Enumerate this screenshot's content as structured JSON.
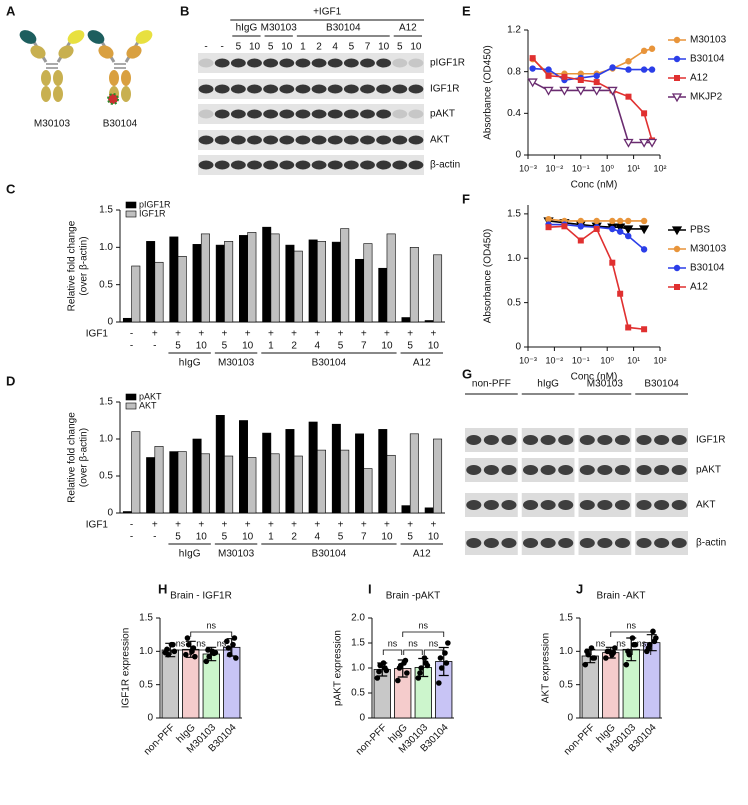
{
  "panel_letters": [
    "A",
    "B",
    "C",
    "D",
    "E",
    "F",
    "G",
    "H",
    "I",
    "J"
  ],
  "antibodies": [
    "M30103",
    "B30104"
  ],
  "blot_b": {
    "treatment": "+IGF1",
    "groups": [
      "hIgG",
      "M30103",
      "B30104",
      "A12"
    ],
    "lanes": [
      "-",
      "-",
      "5",
      "10",
      "5",
      "10",
      "1",
      "2",
      "4",
      "5",
      "7",
      "10",
      "5",
      "10"
    ],
    "rows": [
      "pIGF1R",
      "IGF1R",
      "pAKT",
      "AKT",
      "β-actin"
    ]
  },
  "blot_g": {
    "groups": [
      "non-PFF",
      "hIgG",
      "M30103",
      "B30104"
    ],
    "rows": [
      "IGF1R",
      "pAKT",
      "AKT",
      "β-actin"
    ]
  },
  "chart_data": [
    {
      "type": "grouped_bar",
      "y_label": [
        "Relative fold change",
        "(over β-actin)"
      ],
      "row_label": "IGF1",
      "igf1": [
        "-",
        "+",
        "+",
        "+",
        "+",
        "+",
        "+",
        "+",
        "+",
        "+",
        "+",
        "+",
        "+",
        "+"
      ],
      "categories": [
        "-",
        "-",
        "5",
        "10",
        "5",
        "10",
        "1",
        "2",
        "4",
        "5",
        "7",
        "10",
        "5",
        "10"
      ],
      "groups": [
        "hIgG",
        "M30103",
        "B30104",
        "A12"
      ],
      "ylim": [
        0,
        1.5
      ],
      "yticks": [
        0,
        0.5,
        {
          "value": 1,
          "label": "1.0"
        },
        1.5
      ],
      "series": [
        {
          "name": "pIGF1R",
          "color": "#000000",
          "values": [
            0.05,
            1.08,
            1.14,
            1.04,
            1.03,
            1.16,
            1.27,
            1.03,
            1.1,
            1.07,
            0.84,
            0.72,
            0.06,
            0.02
          ]
        },
        {
          "name": "IGF1R",
          "color": "#c0c0c0",
          "values": [
            0.75,
            0.8,
            0.88,
            1.18,
            1.08,
            1.2,
            1.18,
            0.95,
            1.08,
            1.25,
            1.05,
            1.18,
            1.0,
            0.9
          ]
        }
      ]
    },
    {
      "type": "grouped_bar",
      "y_label": [
        "Relative fold change",
        "(over β-actin)"
      ],
      "row_label": "IGF1",
      "igf1": [
        "-",
        "+",
        "+",
        "+",
        "+",
        "+",
        "+",
        "+",
        "+",
        "+",
        "+",
        "+",
        "+",
        "+"
      ],
      "categories": [
        "-",
        "-",
        "5",
        "10",
        "5",
        "10",
        "1",
        "2",
        "4",
        "5",
        "7",
        "10",
        "5",
        "10"
      ],
      "groups": [
        "hIgG",
        "M30103",
        "B30104",
        "A12"
      ],
      "ylim": [
        0,
        1.5
      ],
      "yticks": [
        0,
        0.5,
        {
          "value": 1,
          "label": "1.0"
        },
        1.5
      ],
      "series": [
        {
          "name": "pAKT",
          "color": "#000000",
          "values": [
            0.02,
            0.75,
            0.83,
            1.0,
            1.32,
            1.25,
            1.08,
            1.13,
            1.23,
            1.2,
            1.07,
            1.13,
            0.1,
            0.07
          ]
        },
        {
          "name": "AKT",
          "color": "#c0c0c0",
          "values": [
            1.1,
            0.9,
            0.83,
            0.8,
            0.77,
            0.75,
            0.8,
            0.77,
            0.85,
            0.85,
            0.6,
            0.78,
            1.07,
            1.0
          ]
        }
      ]
    },
    {
      "type": "line",
      "x_scale": "log",
      "x_label": "Conc (nM)",
      "y_label": "Absorbance (OD450)",
      "x": [
        0.0015,
        0.006,
        0.024,
        0.1,
        0.4,
        1.6,
        6.4,
        25,
        50
      ],
      "xlim": [
        0.001,
        100
      ],
      "xticks": [
        {
          "value": 0.001,
          "label": "10⁻³"
        },
        {
          "value": 0.01,
          "label": "10⁻²"
        },
        {
          "value": 0.1,
          "label": "10⁻¹"
        },
        {
          "value": 1,
          "label": "10⁰"
        },
        {
          "value": 10,
          "label": "10¹"
        },
        {
          "value": 100,
          "label": "10²"
        }
      ],
      "ylim": [
        0,
        1.2
      ],
      "yticks": [
        0,
        0.4,
        0.8,
        1.2
      ],
      "series": [
        {
          "name": "M30103",
          "color": "#e8943a",
          "marker": "circle",
          "values": [
            0.92,
            0.78,
            0.78,
            0.78,
            0.78,
            0.83,
            0.9,
            1.0,
            1.02
          ]
        },
        {
          "name": "B30104",
          "color": "#2b3ee8",
          "marker": "circle",
          "values": [
            0.83,
            0.82,
            0.72,
            0.74,
            0.76,
            0.84,
            0.82,
            0.82,
            0.82
          ]
        },
        {
          "name": "A12",
          "color": "#e03030",
          "marker": "square",
          "values": [
            0.93,
            0.76,
            0.75,
            0.72,
            0.7,
            0.62,
            0.56,
            0.4,
            0.14
          ]
        },
        {
          "name": "MKJP2",
          "color": "#6a2c70",
          "marker": "triangle-down-open",
          "values": [
            0.7,
            0.62,
            0.62,
            0.62,
            0.62,
            0.62,
            0.12,
            0.12,
            0.12
          ]
        }
      ]
    },
    {
      "type": "line",
      "x_scale": "log",
      "x_label": "Conc (nM)",
      "y_label": "Absorbance (OD450)",
      "x": [
        0.006,
        0.024,
        0.1,
        0.4,
        1.56,
        3.1,
        6.25,
        25
      ],
      "xlim": [
        0.001,
        100
      ],
      "xticks": [
        {
          "value": 0.001,
          "label": "10⁻³"
        },
        {
          "value": 0.01,
          "label": "10⁻²"
        },
        {
          "value": 0.1,
          "label": "10⁻¹"
        },
        {
          "value": 1,
          "label": "10⁰"
        },
        {
          "value": 10,
          "label": "10¹"
        },
        {
          "value": 100,
          "label": "10²"
        }
      ],
      "ylim": [
        0,
        1.6
      ],
      "yticks": [
        0,
        0.5,
        {
          "value": 1,
          "label": "1.0"
        },
        1.5
      ],
      "series": [
        {
          "name": "PBS",
          "color": "#000000",
          "marker": "triangle-down",
          "values": [
            1.42,
            1.4,
            1.38,
            1.36,
            1.35,
            1.35,
            1.33,
            1.33
          ]
        },
        {
          "name": "M30103",
          "color": "#e8943a",
          "marker": "circle",
          "values": [
            1.44,
            1.42,
            1.42,
            1.42,
            1.42,
            1.42,
            1.42,
            1.42
          ]
        },
        {
          "name": "B30104",
          "color": "#2b3ee8",
          "marker": "circle",
          "values": [
            1.38,
            1.38,
            1.36,
            1.35,
            1.33,
            1.3,
            1.25,
            1.1
          ]
        },
        {
          "name": "A12",
          "color": "#e03030",
          "marker": "square",
          "values": [
            1.35,
            1.36,
            1.2,
            1.33,
            0.95,
            0.6,
            0.22,
            0.2
          ]
        }
      ]
    },
    {
      "type": "bar_scatter",
      "title": "Brain - IGF1R",
      "y_label": "IGF1R expression",
      "categories": [
        "non-PFF",
        "hIgG",
        "M30103",
        "B30104"
      ],
      "colors": [
        "#c8c8c8",
        "#f5cccc",
        "#ccf5cc",
        "#c8c4f5"
      ],
      "values": [
        1.02,
        1.03,
        0.96,
        1.06
      ],
      "errors": [
        0.1,
        0.12,
        0.1,
        0.13
      ],
      "points": [
        [
          0.98,
          0.95,
          1.1,
          1.0,
          1.03,
          1.1
        ],
        [
          0.95,
          1.1,
          1.0,
          0.92,
          1.2,
          1.05
        ],
        [
          0.85,
          0.92,
          1.0,
          0.98,
          1.02,
          0.97
        ],
        [
          1.15,
          0.95,
          1.1,
          0.9,
          1.05,
          1.2
        ]
      ],
      "ylim": [
        0,
        1.5
      ],
      "yticks": [
        0,
        0.5,
        {
          "value": 1,
          "label": "1.0"
        },
        1.5
      ],
      "annotations": [
        "ns",
        "ns",
        "ns",
        "ns"
      ]
    },
    {
      "type": "bar_scatter",
      "title": "Brain -pAKT",
      "y_label": "pAKT expression",
      "categories": [
        "non-PFF",
        "hIgG",
        "M30103",
        "B30104"
      ],
      "colors": [
        "#c8c8c8",
        "#f5cccc",
        "#ccf5cc",
        "#c8c4f5"
      ],
      "values": [
        0.97,
        0.99,
        1.01,
        1.13
      ],
      "errors": [
        0.13,
        0.17,
        0.18,
        0.28
      ],
      "points": [
        [
          0.8,
          1.05,
          1.1,
          0.95,
          0.93,
          1.0
        ],
        [
          0.75,
          1.05,
          1.1,
          0.9,
          1.0,
          1.15
        ],
        [
          0.8,
          1.0,
          1.2,
          1.05,
          0.9,
          1.1
        ],
        [
          0.7,
          1.0,
          1.3,
          1.5,
          1.2,
          1.1
        ]
      ],
      "ylim": [
        0,
        2
      ],
      "yticks": [
        0,
        0.5,
        {
          "value": 1,
          "label": "1.0"
        },
        1.5,
        {
          "value": 2,
          "label": "2.0"
        }
      ],
      "annotations": [
        "ns",
        "ns",
        "ns",
        "ns"
      ]
    },
    {
      "type": "bar_scatter",
      "title": "Brain -AKT",
      "y_label": "AKT expression",
      "categories": [
        "non-PFF",
        "hIgG",
        "M30103",
        "B30104"
      ],
      "colors": [
        "#c8c8c8",
        "#f5cccc",
        "#ccf5cc",
        "#c8c4f5"
      ],
      "values": [
        0.93,
        0.98,
        1.03,
        1.13
      ],
      "errors": [
        0.1,
        0.08,
        0.17,
        0.12
      ],
      "points": [
        [
          0.8,
          0.95,
          1.05,
          0.9,
          1.0,
          0.9
        ],
        [
          0.9,
          1.0,
          0.95,
          1.05,
          1.0,
          0.98
        ],
        [
          0.8,
          0.95,
          1.2,
          1.1,
          1.0,
          1.1
        ],
        [
          1.0,
          1.1,
          1.3,
          1.2,
          1.05,
          1.15
        ]
      ],
      "ylim": [
        0,
        1.5
      ],
      "yticks": [
        0,
        0.5,
        {
          "value": 1,
          "label": "1.0"
        },
        1.5
      ],
      "annotations": [
        "ns",
        "ns",
        "ns",
        "ns"
      ]
    }
  ]
}
